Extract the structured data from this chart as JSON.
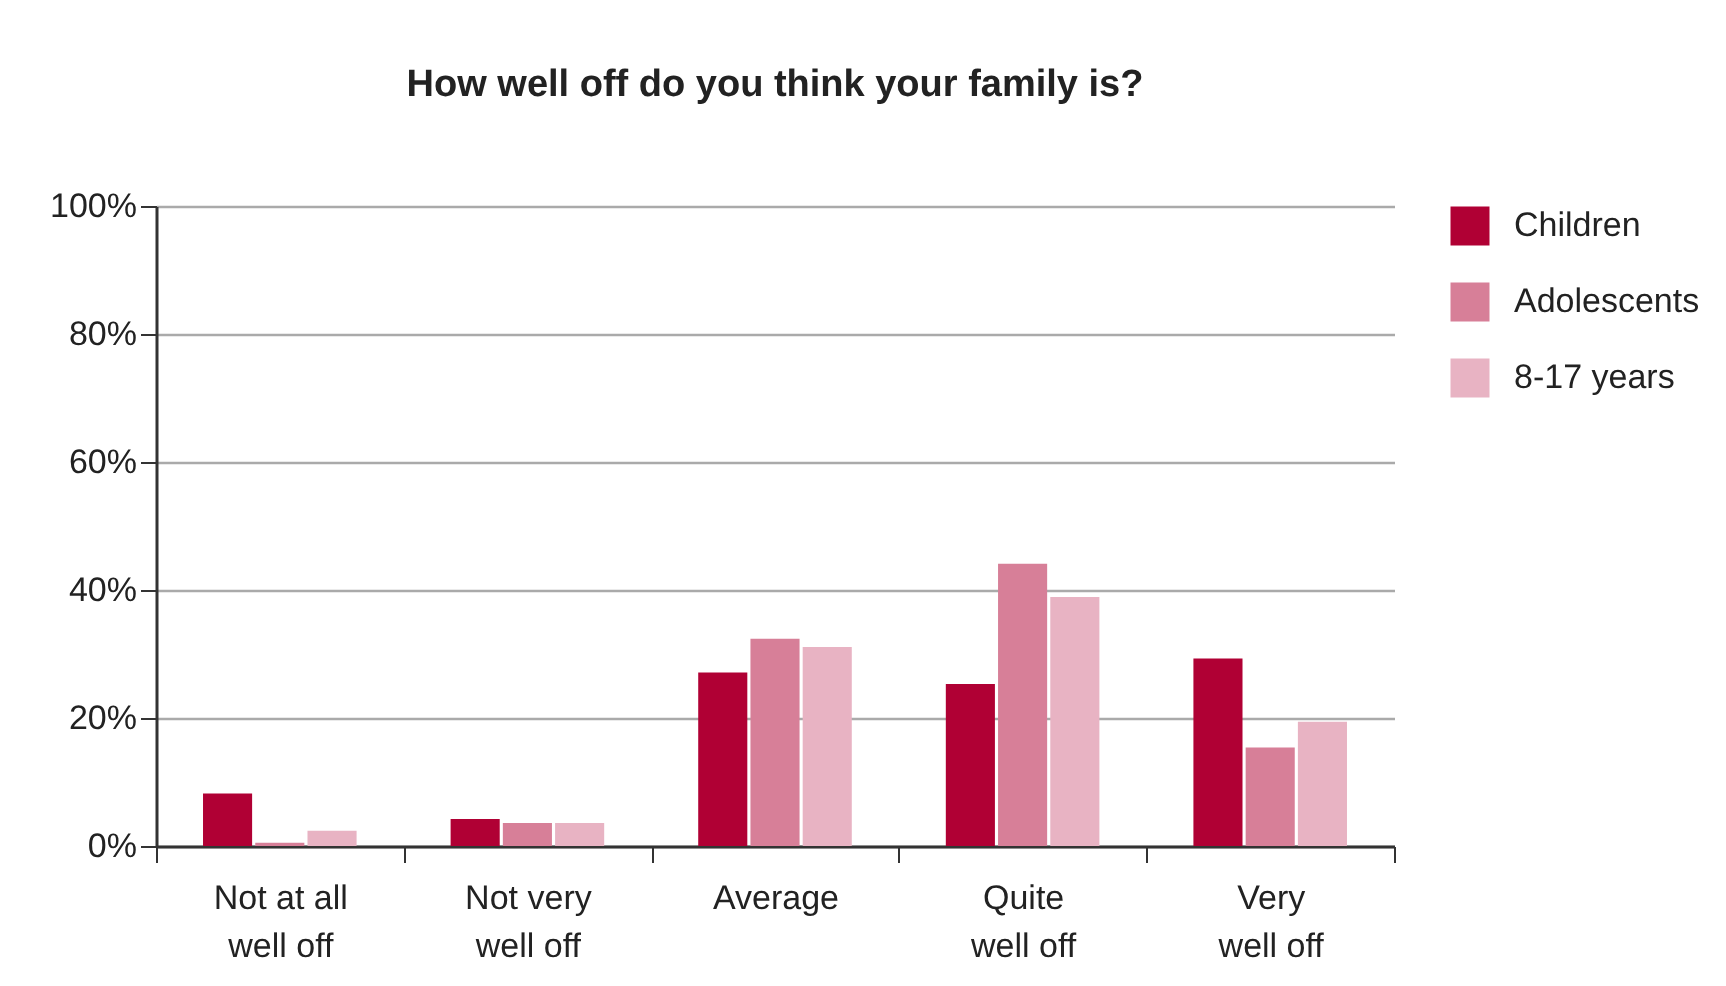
{
  "chart_data": {
    "type": "bar",
    "title": "How well off do you think your family is?",
    "categories": [
      "Not at all well off",
      "Not very well off",
      "Average",
      "Quite well off",
      "Very well off"
    ],
    "series": [
      {
        "name": "Children",
        "color": "#b00034",
        "values": [
          8.2,
          4.2,
          27.1,
          25.3,
          29.3
        ]
      },
      {
        "name": "Adolescents",
        "color": "#d77f98",
        "values": [
          0.5,
          3.6,
          32.4,
          44.1,
          15.4
        ]
      },
      {
        "name": "8-17 years",
        "color": "#e8b3c3",
        "values": [
          2.4,
          3.6,
          31.1,
          38.9,
          19.4
        ]
      }
    ],
    "ylim": [
      0,
      100
    ],
    "yticks": [
      {
        "value": 0,
        "label": "0%"
      },
      {
        "value": 20,
        "label": "20%"
      },
      {
        "value": 40,
        "label": "40%"
      },
      {
        "value": 60,
        "label": "60%"
      },
      {
        "value": 80,
        "label": "80%"
      },
      {
        "value": 100,
        "label": "100%"
      }
    ],
    "grid": "y",
    "legend": "top right"
  }
}
